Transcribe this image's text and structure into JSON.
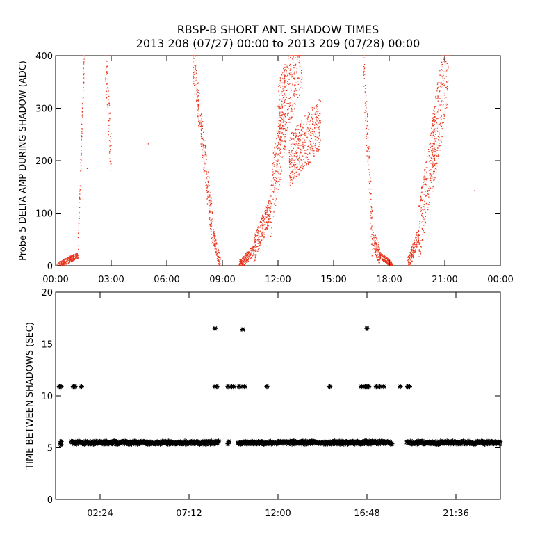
{
  "figure": {
    "title_line1": "RBSP-B SHORT ANT. SHADOW TIMES",
    "title_line2": "2013 208 (07/27) 00:00 to 2013 209 (07/28) 00:00"
  },
  "chart_data": [
    {
      "type": "scatter",
      "name": "delta-amp",
      "ylabel": "Probe 5 DELTA AMP DURING SHADOW (ADC)",
      "xlabel": "",
      "xlim": [
        0,
        24
      ],
      "ylim": [
        0,
        400
      ],
      "x_tick_labels": [
        "00:00",
        "03:00",
        "06:00",
        "09:00",
        "12:00",
        "15:00",
        "18:00",
        "21:00",
        "00:00"
      ],
      "x_tick_values": [
        0,
        3,
        6,
        9,
        12,
        15,
        18,
        21,
        24
      ],
      "y_tick_labels": [
        "0",
        "100",
        "200",
        "300",
        "400"
      ],
      "y_tick_values": [
        0,
        100,
        200,
        300,
        400
      ],
      "grid": false,
      "point_color": "#e8341c",
      "segments": [
        {
          "x_start": 0.1,
          "x_end": 1.2,
          "y_start": 0,
          "y_end": 20,
          "spread": 6
        },
        {
          "x_start": 1.2,
          "x_end": 1.55,
          "y_start": 20,
          "y_end": 400,
          "spread": 25
        },
        {
          "x_start": 2.7,
          "x_end": 3.0,
          "y_start": 400,
          "y_end": 200,
          "spread": 50
        },
        {
          "x_start": 7.4,
          "x_end": 7.9,
          "y_start": 400,
          "y_end": 250,
          "spread": 40
        },
        {
          "x_start": 7.9,
          "x_end": 8.5,
          "y_start": 250,
          "y_end": 60,
          "spread": 40
        },
        {
          "x_start": 8.5,
          "x_end": 8.9,
          "y_start": 60,
          "y_end": 0,
          "spread": 15
        },
        {
          "x_start": 9.9,
          "x_end": 10.7,
          "y_start": 0,
          "y_end": 30,
          "spread": 10
        },
        {
          "x_start": 10.7,
          "x_end": 11.6,
          "y_start": 30,
          "y_end": 110,
          "spread": 25
        },
        {
          "x_start": 11.6,
          "x_end": 12.4,
          "y_start": 110,
          "y_end": 300,
          "spread": 70
        },
        {
          "x_start": 12.0,
          "x_end": 13.3,
          "y_start": 280,
          "y_end": 400,
          "spread": 70
        },
        {
          "x_start": 12.6,
          "x_end": 14.3,
          "y_start": 200,
          "y_end": 270,
          "spread": 50
        },
        {
          "x_start": 16.6,
          "x_end": 17.1,
          "y_start": 400,
          "y_end": 50,
          "spread": 50
        },
        {
          "x_start": 17.1,
          "x_end": 17.5,
          "y_start": 50,
          "y_end": 20,
          "spread": 20
        },
        {
          "x_start": 17.5,
          "x_end": 18.2,
          "y_start": 20,
          "y_end": 0,
          "spread": 6
        },
        {
          "x_start": 19.0,
          "x_end": 19.6,
          "y_start": 0,
          "y_end": 60,
          "spread": 15
        },
        {
          "x_start": 19.6,
          "x_end": 20.5,
          "y_start": 60,
          "y_end": 250,
          "spread": 60
        },
        {
          "x_start": 20.3,
          "x_end": 21.2,
          "y_start": 200,
          "y_end": 400,
          "spread": 80
        }
      ],
      "isolated_points": [
        {
          "x": 1.7,
          "y": 185
        },
        {
          "x": 5.0,
          "y": 232
        },
        {
          "x": 22.6,
          "y": 143
        },
        {
          "x": 0.05,
          "y": 3
        }
      ]
    },
    {
      "type": "scatter",
      "name": "time-between-shadows",
      "ylabel": "TIME BETWEEN SHADOWS (SEC)",
      "xlabel": "",
      "xlim": [
        0,
        24
      ],
      "ylim": [
        0,
        20
      ],
      "x_tick_labels": [
        "02:24",
        "07:12",
        "12:00",
        "16:48",
        "21:36"
      ],
      "x_tick_values": [
        2.4,
        7.2,
        12.0,
        16.8,
        21.6
      ],
      "y_tick_labels": [
        "0",
        "5",
        "10",
        "15",
        "20"
      ],
      "y_tick_values": [
        0,
        5,
        10,
        15,
        20
      ],
      "grid": false,
      "marker": "*",
      "point_color": "#000000",
      "baseline_value": 5.5,
      "baseline_ranges": [
        [
          0.85,
          8.8
        ],
        [
          9.85,
          18.15
        ],
        [
          18.95,
          24.0
        ]
      ],
      "points": [
        {
          "x": 0.25,
          "y": 5.4
        },
        {
          "x": 0.3,
          "y": 5.6
        },
        {
          "x": 0.3,
          "y": 5.3
        },
        {
          "x": 0.2,
          "y": 10.9
        },
        {
          "x": 0.3,
          "y": 10.9
        },
        {
          "x": 0.95,
          "y": 10.9
        },
        {
          "x": 1.05,
          "y": 10.9
        },
        {
          "x": 1.4,
          "y": 10.9
        },
        {
          "x": 8.6,
          "y": 16.5
        },
        {
          "x": 8.6,
          "y": 10.9
        },
        {
          "x": 8.7,
          "y": 10.9
        },
        {
          "x": 9.3,
          "y": 5.4
        },
        {
          "x": 9.35,
          "y": 5.6
        },
        {
          "x": 9.3,
          "y": 10.9
        },
        {
          "x": 9.5,
          "y": 10.9
        },
        {
          "x": 9.6,
          "y": 10.9
        },
        {
          "x": 9.9,
          "y": 10.9
        },
        {
          "x": 10.1,
          "y": 10.9
        },
        {
          "x": 10.2,
          "y": 10.9
        },
        {
          "x": 10.1,
          "y": 16.4
        },
        {
          "x": 11.4,
          "y": 10.9
        },
        {
          "x": 14.8,
          "y": 10.9
        },
        {
          "x": 16.5,
          "y": 10.9
        },
        {
          "x": 16.6,
          "y": 10.9
        },
        {
          "x": 16.7,
          "y": 10.9
        },
        {
          "x": 16.8,
          "y": 10.9
        },
        {
          "x": 16.9,
          "y": 10.9
        },
        {
          "x": 16.8,
          "y": 16.5
        },
        {
          "x": 17.3,
          "y": 10.9
        },
        {
          "x": 17.5,
          "y": 10.9
        },
        {
          "x": 17.7,
          "y": 10.9
        },
        {
          "x": 18.6,
          "y": 10.9
        },
        {
          "x": 19.0,
          "y": 10.9
        },
        {
          "x": 19.1,
          "y": 10.9
        }
      ]
    }
  ]
}
